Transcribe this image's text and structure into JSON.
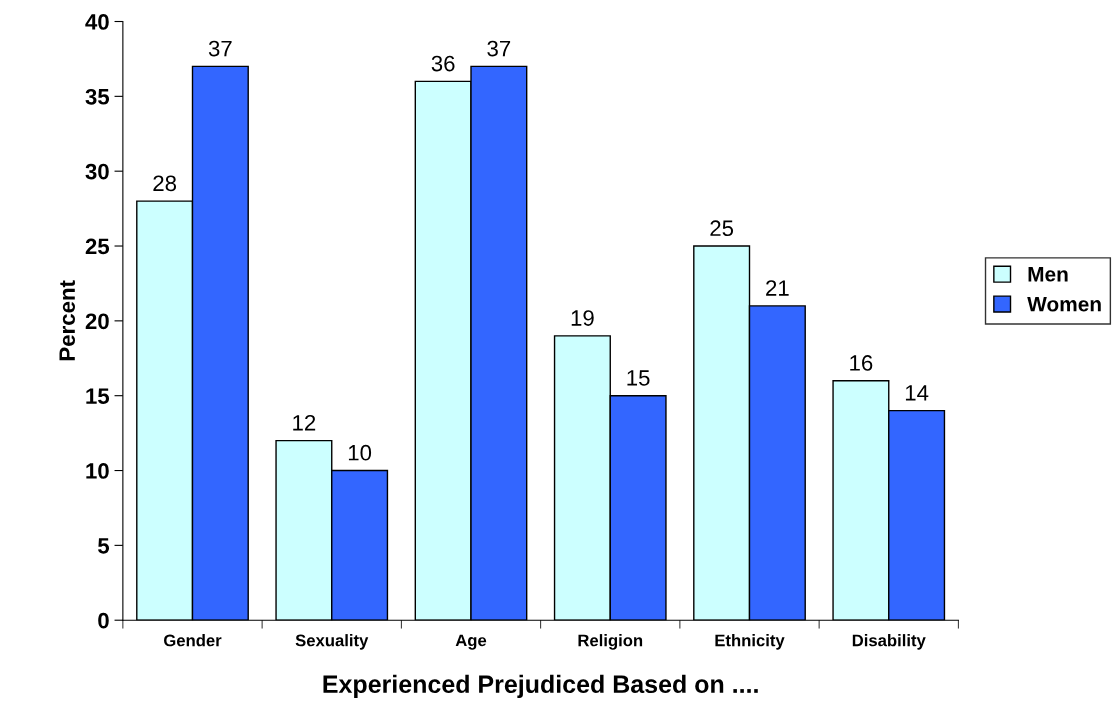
{
  "chart_data": {
    "type": "bar",
    "xlabel": "Experienced Prejudiced Based on ....",
    "ylabel": "Percent",
    "categories": [
      "Gender",
      "Sexuality",
      "Age",
      "Religion",
      "Ethnicity",
      "Disability"
    ],
    "series": [
      {
        "name": "Men",
        "color": "#ccffff",
        "values": [
          28,
          12,
          36,
          19,
          25,
          16
        ]
      },
      {
        "name": "Women",
        "color": "#3366ff",
        "values": [
          37,
          10,
          37,
          15,
          21,
          14
        ]
      }
    ],
    "ylim": [
      0,
      40
    ],
    "yticks": [
      0,
      5,
      10,
      15,
      20,
      25,
      30,
      35,
      40
    ],
    "data_labels": true,
    "legend": "right",
    "grid": false
  }
}
